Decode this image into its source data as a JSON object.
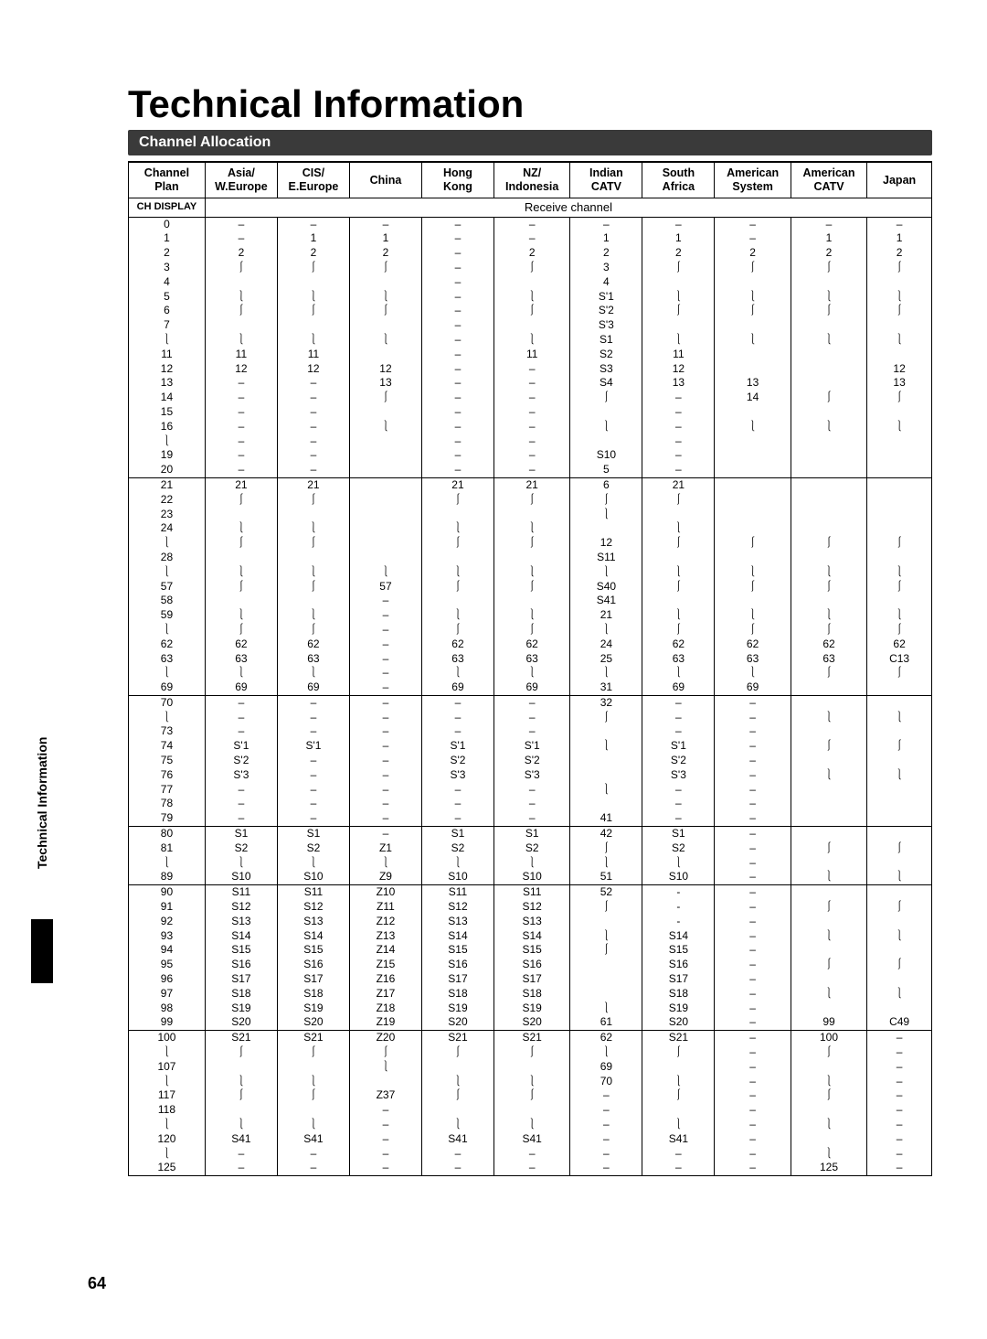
{
  "page": {
    "title": "Technical Information",
    "section": "Channel Allocation",
    "side_label": "Technical Information",
    "page_number": "64"
  },
  "headers": [
    "Channel\nPlan",
    "Asia/\nW.Europe",
    "CIS/\nE.Europe",
    "China",
    "Hong\nKong",
    "NZ/\nIndonesia",
    "Indian\nCATV",
    "South\nAfrica",
    "American\nSystem",
    "American\nCATV",
    "Japan"
  ],
  "subheader": {
    "left": "CH DISPLAY",
    "right": "Receive channel"
  },
  "rows": [
    [
      "0",
      "–",
      "–",
      "–",
      "–",
      "–",
      "–",
      "–",
      "–",
      "–",
      "–"
    ],
    [
      "1",
      "–",
      "1",
      "1",
      "–",
      "–",
      "1",
      "1",
      "–",
      "1",
      "1"
    ],
    [
      "2",
      "2",
      "2",
      "2",
      "–",
      "2",
      "2",
      "2",
      "2",
      "2",
      "2"
    ],
    [
      "3",
      "⟩",
      "⟩",
      "⟩",
      "–",
      "⟩",
      "3",
      "⟩",
      "⟩",
      "⟩",
      "⟩"
    ],
    [
      "4",
      "",
      "",
      "",
      "–",
      "",
      "4",
      "",
      "",
      "",
      ""
    ],
    [
      "5",
      "⟨",
      "⟨",
      "⟨",
      "–",
      "⟨",
      "S'1",
      "⟨",
      "⟨",
      "⟨",
      "⟨"
    ],
    [
      "6",
      "⟩",
      "⟩",
      "⟩",
      "–",
      "⟩",
      "S'2",
      "⟩",
      "⟩",
      "⟩",
      "⟩"
    ],
    [
      "7",
      "",
      "",
      "",
      "–",
      "",
      "S'3",
      "",
      "",
      "",
      ""
    ],
    [
      "⟨",
      "⟨",
      "⟨",
      "⟨",
      "–",
      "⟨",
      "S1",
      "⟨",
      "⟨",
      "⟨",
      "⟨"
    ],
    [
      "11",
      "11",
      "11",
      "",
      "–",
      "11",
      "S2",
      "11",
      "",
      "",
      ""
    ],
    [
      "12",
      "12",
      "12",
      "12",
      "–",
      "–",
      "S3",
      "12",
      "",
      "",
      "12"
    ],
    [
      "13",
      "–",
      "–",
      "13",
      "–",
      "–",
      "S4",
      "13",
      "13",
      "",
      "13"
    ],
    [
      "14",
      "–",
      "–",
      "⟩",
      "–",
      "–",
      "⟩",
      "–",
      "14",
      "⟩",
      "⟩"
    ],
    [
      "15",
      "–",
      "–",
      "",
      "–",
      "–",
      "",
      "–",
      "",
      "",
      ""
    ],
    [
      "16",
      "–",
      "–",
      "⟨",
      "–",
      "–",
      "⟨",
      "–",
      "⟨",
      "⟨",
      "⟨"
    ],
    [
      "⟨",
      "–",
      "–",
      "",
      "–",
      "–",
      "",
      "–",
      "",
      "",
      ""
    ],
    [
      "19",
      "–",
      "–",
      "",
      "–",
      "–",
      "S10",
      "–",
      "",
      "",
      ""
    ],
    [
      "20",
      "–",
      "–",
      "",
      "–",
      "–",
      "5",
      "–",
      "",
      "",
      ""
    ]
  ],
  "rows2": [
    [
      "21",
      "21",
      "21",
      "",
      "21",
      "21",
      "6",
      "21",
      "",
      "",
      ""
    ],
    [
      "22",
      "⟩",
      "⟩",
      "",
      "⟩",
      "⟩",
      "⟩",
      "⟩",
      "",
      "",
      ""
    ],
    [
      "23",
      "",
      "",
      "",
      "",
      "",
      "⟨",
      "",
      "",
      "",
      ""
    ],
    [
      "24",
      "⟨",
      "⟨",
      "",
      "⟨",
      "⟨",
      "",
      "⟨",
      "",
      "",
      ""
    ],
    [
      "⟨",
      "⟩",
      "⟩",
      "",
      "⟩",
      "⟩",
      "12",
      "⟩",
      "⟩",
      "⟩",
      "⟩"
    ],
    [
      "28",
      "",
      "",
      "",
      "",
      "",
      "S11",
      "",
      "",
      "",
      ""
    ],
    [
      "⟨",
      "⟨",
      "⟨",
      "⟨",
      "⟨",
      "⟨",
      "⟨",
      "⟨",
      "⟨",
      "⟨",
      "⟨"
    ],
    [
      "57",
      "⟩",
      "⟩",
      "57",
      "⟩",
      "⟩",
      "S40",
      "⟩",
      "⟩",
      "⟩",
      "⟩"
    ],
    [
      "58",
      "",
      "",
      "–",
      "",
      "",
      "S41",
      "",
      "",
      "",
      ""
    ],
    [
      "59",
      "⟨",
      "⟨",
      "–",
      "⟨",
      "⟨",
      "21",
      "⟨",
      "⟨",
      "⟨",
      "⟨"
    ],
    [
      "⟨",
      "⟩",
      "⟩",
      "–",
      "⟩",
      "⟩",
      "⟨",
      "⟩",
      "⟩",
      "⟩",
      "⟩"
    ],
    [
      "62",
      "62",
      "62",
      "–",
      "62",
      "62",
      "24",
      "62",
      "62",
      "62",
      "62"
    ],
    [
      "63",
      "63",
      "63",
      "–",
      "63",
      "63",
      "25",
      "63",
      "63",
      "63",
      "C13"
    ],
    [
      "⟨",
      "⟨",
      "⟨",
      "–",
      "⟨",
      "⟨",
      "⟨",
      "⟨",
      "⟨",
      "⟩",
      "⟩"
    ],
    [
      "69",
      "69",
      "69",
      "–",
      "69",
      "69",
      "31",
      "69",
      "69",
      "",
      ""
    ]
  ],
  "rows3": [
    [
      "70",
      "–",
      "–",
      "–",
      "–",
      "–",
      "32",
      "–",
      "–",
      "",
      ""
    ],
    [
      "⟨",
      "–",
      "–",
      "–",
      "–",
      "–",
      "⟩",
      "–",
      "–",
      "⟨",
      "⟨"
    ],
    [
      "73",
      "–",
      "–",
      "–",
      "–",
      "–",
      "",
      "–",
      "–",
      "",
      ""
    ],
    [
      "74",
      "S'1",
      "S'1",
      "–",
      "S'1",
      "S'1",
      "⟨",
      "S'1",
      "–",
      "⟩",
      "⟩"
    ],
    [
      "75",
      "S'2",
      "–",
      "–",
      "S'2",
      "S'2",
      "",
      "S'2",
      "–",
      "",
      ""
    ],
    [
      "76",
      "S'3",
      "–",
      "–",
      "S'3",
      "S'3",
      "",
      "S'3",
      "–",
      "⟨",
      "⟨"
    ],
    [
      "77",
      "–",
      "–",
      "–",
      "–",
      "–",
      "⟨",
      "–",
      "–",
      "",
      ""
    ],
    [
      "78",
      "–",
      "–",
      "–",
      "–",
      "–",
      "",
      "–",
      "–",
      "",
      ""
    ],
    [
      "79",
      "–",
      "–",
      "–",
      "–",
      "–",
      "41",
      "–",
      "–",
      "",
      ""
    ]
  ],
  "rows4": [
    [
      "80",
      "S1",
      "S1",
      "–",
      "S1",
      "S1",
      "42",
      "S1",
      "–",
      "",
      ""
    ],
    [
      "81",
      "S2",
      "S2",
      "Z1",
      "S2",
      "S2",
      "⟩",
      "S2",
      "–",
      "⟩",
      "⟩"
    ],
    [
      "⟨",
      "⟨",
      "⟨",
      "⟨",
      "⟨",
      "⟨",
      "⟨",
      "⟨",
      "–",
      "",
      ""
    ],
    [
      "89",
      "S10",
      "S10",
      "Z9",
      "S10",
      "S10",
      "51",
      "S10",
      "–",
      "⟨",
      "⟨"
    ]
  ],
  "rows5": [
    [
      "90",
      "S11",
      "S11",
      "Z10",
      "S11",
      "S11",
      "52",
      "-",
      "–",
      "",
      ""
    ],
    [
      "91",
      "S12",
      "S12",
      "Z11",
      "S12",
      "S12",
      "⟩",
      "-",
      "–",
      "⟩",
      "⟩"
    ],
    [
      "92",
      "S13",
      "S13",
      "Z12",
      "S13",
      "S13",
      "",
      "-",
      "–",
      "",
      ""
    ],
    [
      "93",
      "S14",
      "S14",
      "Z13",
      "S14",
      "S14",
      "⟨",
      "S14",
      "–",
      "⟨",
      "⟨"
    ],
    [
      "94",
      "S15",
      "S15",
      "Z14",
      "S15",
      "S15",
      "⟩",
      "S15",
      "–",
      "",
      ""
    ],
    [
      "95",
      "S16",
      "S16",
      "Z15",
      "S16",
      "S16",
      "",
      "S16",
      "–",
      "⟩",
      "⟩"
    ],
    [
      "96",
      "S17",
      "S17",
      "Z16",
      "S17",
      "S17",
      "",
      "S17",
      "–",
      "",
      ""
    ],
    [
      "97",
      "S18",
      "S18",
      "Z17",
      "S18",
      "S18",
      "",
      "S18",
      "–",
      "⟨",
      "⟨"
    ],
    [
      "98",
      "S19",
      "S19",
      "Z18",
      "S19",
      "S19",
      "⟨",
      "S19",
      "–",
      "",
      ""
    ],
    [
      "99",
      "S20",
      "S20",
      "Z19",
      "S20",
      "S20",
      "61",
      "S20",
      "–",
      "99",
      "C49"
    ]
  ],
  "rows6": [
    [
      "100",
      "S21",
      "S21",
      "Z20",
      "S21",
      "S21",
      "62",
      "S21",
      "–",
      "100",
      "–"
    ],
    [
      "⟨",
      "⟩",
      "⟩",
      "⟩",
      "⟩",
      "⟩",
      "⟨",
      "⟩",
      "–",
      "⟩",
      "–"
    ],
    [
      "107",
      "",
      "",
      "⟨",
      "",
      "",
      "69",
      "",
      "–",
      "",
      "–"
    ],
    [
      "⟨",
      "⟨",
      "⟨",
      "",
      "⟨",
      "⟨",
      "70",
      "⟨",
      "–",
      "⟨",
      "–"
    ],
    [
      "117",
      "⟩",
      "⟩",
      "Z37",
      "⟩",
      "⟩",
      "–",
      "⟩",
      "–",
      "⟩",
      "–"
    ],
    [
      "118",
      "",
      "",
      "–",
      "",
      "",
      "–",
      "",
      "–",
      "",
      "–"
    ],
    [
      "⟨",
      "⟨",
      "⟨",
      "–",
      "⟨",
      "⟨",
      "–",
      "⟨",
      "–",
      "⟨",
      "–"
    ],
    [
      "120",
      "S41",
      "S41",
      "–",
      "S41",
      "S41",
      "–",
      "S41",
      "–",
      "",
      "–"
    ],
    [
      "⟨",
      "–",
      "–",
      "–",
      "–",
      "–",
      "–",
      "–",
      "–",
      "⟨",
      "–"
    ],
    [
      "125",
      "–",
      "–",
      "–",
      "–",
      "–",
      "–",
      "–",
      "–",
      "125",
      "–"
    ]
  ]
}
